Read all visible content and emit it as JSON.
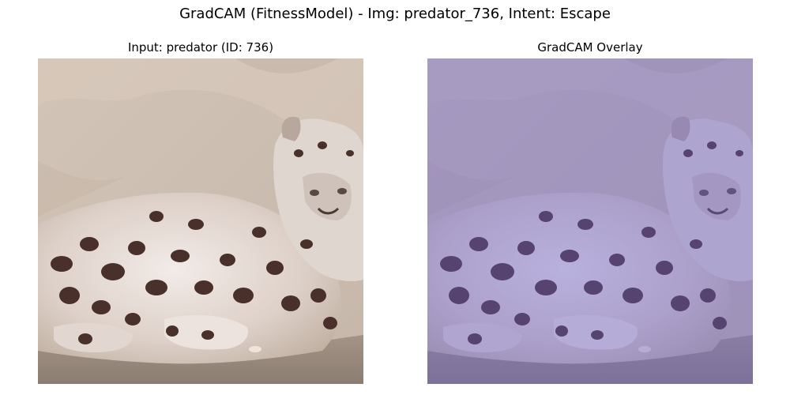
{
  "figure": {
    "title": "GradCAM (FitnessModel) - Img: predator_736, Intent: Escape"
  },
  "panels": [
    {
      "title": "Input: predator (ID: 736)",
      "content": "snow-leopard-photo"
    },
    {
      "title": "GradCAM Overlay",
      "content": "snow-leopard-photo-with-purple-heatmap-overlay"
    }
  ],
  "colors": {
    "background": "#ffffff",
    "overlay_tint": "#6a5fd0",
    "rock": "#cdbfb0",
    "fur": "#e4d8d0",
    "spot": "#4a302a"
  }
}
